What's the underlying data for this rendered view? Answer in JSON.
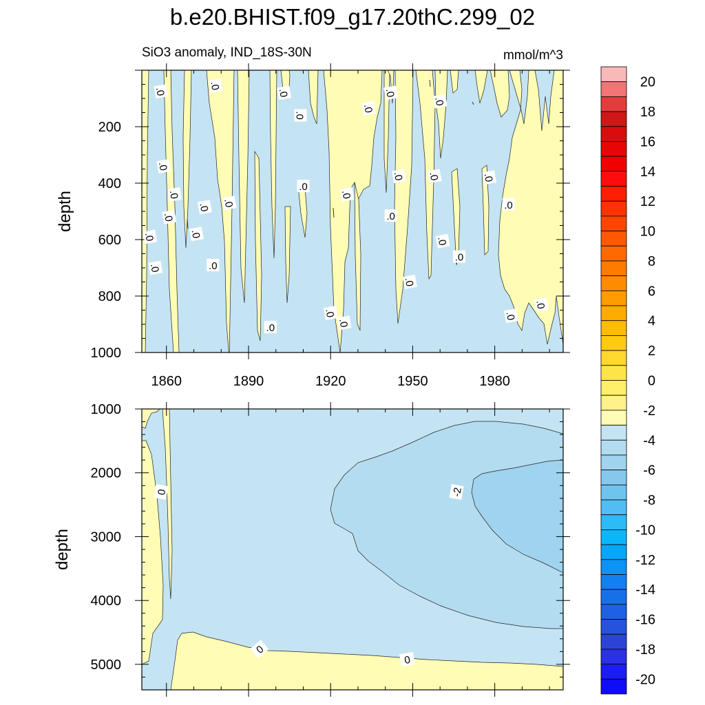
{
  "chart_data": {
    "type": "contour",
    "title": "b.e20.BHIST.f09_g17.20thC.299_02",
    "subtitle_left": "SiO3 anomaly, IND_18S-30N",
    "subtitle_right": "mmol/m^3",
    "ylabel": "depth",
    "x_ticks": [
      "1860",
      "1890",
      "1920",
      "1950",
      "1980"
    ],
    "xlim": [
      1851,
      2005
    ],
    "panels": [
      {
        "name": "upper",
        "ylim": [
          0,
          1000
        ],
        "y_ticks": [
          "200",
          "400",
          "600",
          "800",
          "1000"
        ],
        "contour_labels": [
          ".0"
        ],
        "description": "0-1000 m: alternating thin positive (0 to 2) and negative (-2 to 0) bands, mostly negative; positive broadly 1920-1940 and 1983-2005"
      },
      {
        "name": "lower",
        "ylim": [
          1000,
          5400
        ],
        "y_ticks": [
          "1000",
          "2000",
          "3000",
          "4000",
          "5000"
        ],
        "contour_labels": [
          "0",
          "-2"
        ],
        "description": "1000-5400 m: mostly -2 to 0; -4 to -2 tongue from ~1920 expanding to 2005 centered 2500 m; positive near bottom below ~4800 m"
      }
    ],
    "colorbar": {
      "labels": [
        "20",
        "18",
        "16",
        "14",
        "12",
        "10",
        "8",
        "6",
        "4",
        "2",
        "0",
        "-2",
        "-4",
        "-6",
        "-8",
        "-10",
        "-12",
        "-14",
        "-16",
        "-18",
        "-20"
      ],
      "levels_from_top": [
        "21",
        "20",
        "19",
        "18",
        "17",
        "16",
        "15",
        "14",
        "13",
        "12",
        "11",
        "10",
        "9",
        "8",
        "7",
        "6",
        "5",
        "4",
        "3",
        "2",
        "1",
        "0",
        "-1",
        "-2",
        "-3",
        "-4",
        "-5",
        "-6",
        "-7",
        "-8",
        "-9",
        "-10",
        "-11",
        "-12",
        "-13",
        "-14",
        "-15",
        "-16",
        "-17",
        "-18",
        "-19",
        "-20",
        "-21"
      ],
      "colors_top_to_bottom": [
        "#f9b9b9",
        "#f27474",
        "#e23c3c",
        "#d01616",
        "#da0c0c",
        "#e60606",
        "#f00000",
        "#ff0d0d",
        "#ff1e00",
        "#ff3300",
        "#ff4600",
        "#ff5800",
        "#ff6a00",
        "#ff7c00",
        "#ff8c00",
        "#ff9c00",
        "#ffac00",
        "#ffbc00",
        "#ffcb10",
        "#ffd92e",
        "#ffe448",
        "#ffef6a",
        "#fff18c",
        "#fffcb6",
        "#c4e4f4",
        "#b3dcf0",
        "#9fd3ee",
        "#86c8ec",
        "#6fc4ee",
        "#52bdf2",
        "#2dbbf6",
        "#0bb7fb",
        "#06a6fb",
        "#0d92f5",
        "#1280ee",
        "#1870e8",
        "#2060e2",
        "#2652dc",
        "#2c44d6",
        "#2a30e6",
        "#1c1cf5",
        "#0f0cf8",
        "#3a1ff2",
        "#7a26ea"
      ]
    }
  }
}
